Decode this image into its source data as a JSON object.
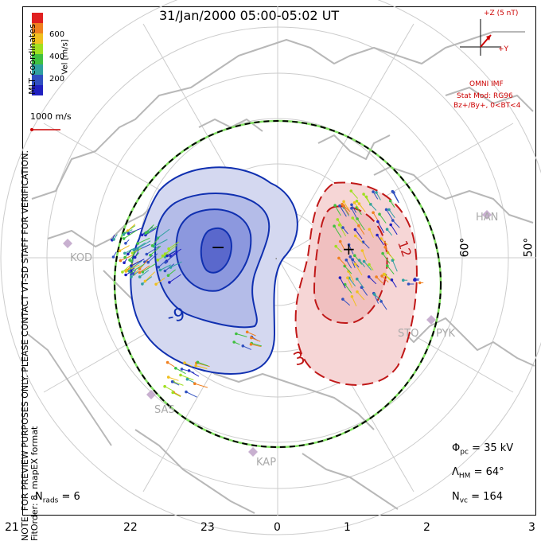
{
  "title": "31/Jan/2000 05:00-05:02 UT",
  "side_note_line1": "NOTE: FOR PREVIEW PURPOSES ONLY. PLEASE CONTACT VT-SD STAFF FOR VERIFICATION.",
  "side_note_line2": "FitOrder: 8, mapEX format",
  "coord_system": "MLT coordinates",
  "colorbar": {
    "label": "Vel [m/s]",
    "ticks": [
      "600",
      "400",
      "200"
    ],
    "colors": [
      "#e02020",
      "#f08020",
      "#f0c020",
      "#a0e020",
      "#40c040",
      "#30a0a0",
      "#3050c0",
      "#2020c0"
    ]
  },
  "velocity_scale": "1000 m/s",
  "imf": {
    "bz_label": "+Z (5 nT)",
    "by_label": "+Y",
    "source": "OMNI IMF",
    "stat_model": "Stat Mod: RG96",
    "condition": "Bz+/By+, 0<BT<4"
  },
  "stats": {
    "phi_pc_label": "Φ",
    "phi_pc_sub": "pc",
    "phi_pc_value": " = 35 kV",
    "lambda_label": "Λ",
    "lambda_sub": "HM",
    "lambda_value": " = 64°",
    "nvc_label": "N",
    "nvc_sub": "vc",
    "nvc_value": " = 164",
    "nrads_label": "N",
    "nrads_sub": "rads",
    "nrads_value": " = 6"
  },
  "mlt_labels": [
    "21",
    "22",
    "23",
    "0",
    "1",
    "2",
    "3"
  ],
  "lat_labels": [
    "60°",
    "50°"
  ],
  "stations": [
    "KOD",
    "HAN",
    "STO",
    "PYK",
    "SAS",
    "KAP"
  ],
  "contour_labels": [
    "-9",
    "3",
    "12"
  ],
  "potential_marks": [
    "−",
    "+"
  ],
  "colors": {
    "negative_line": "#1030b0",
    "positive_line": "#c01818",
    "hmb": "#000000",
    "hmb_accent": "#80e060",
    "coast": "#b8b8b8",
    "grid": "#cccccc"
  }
}
